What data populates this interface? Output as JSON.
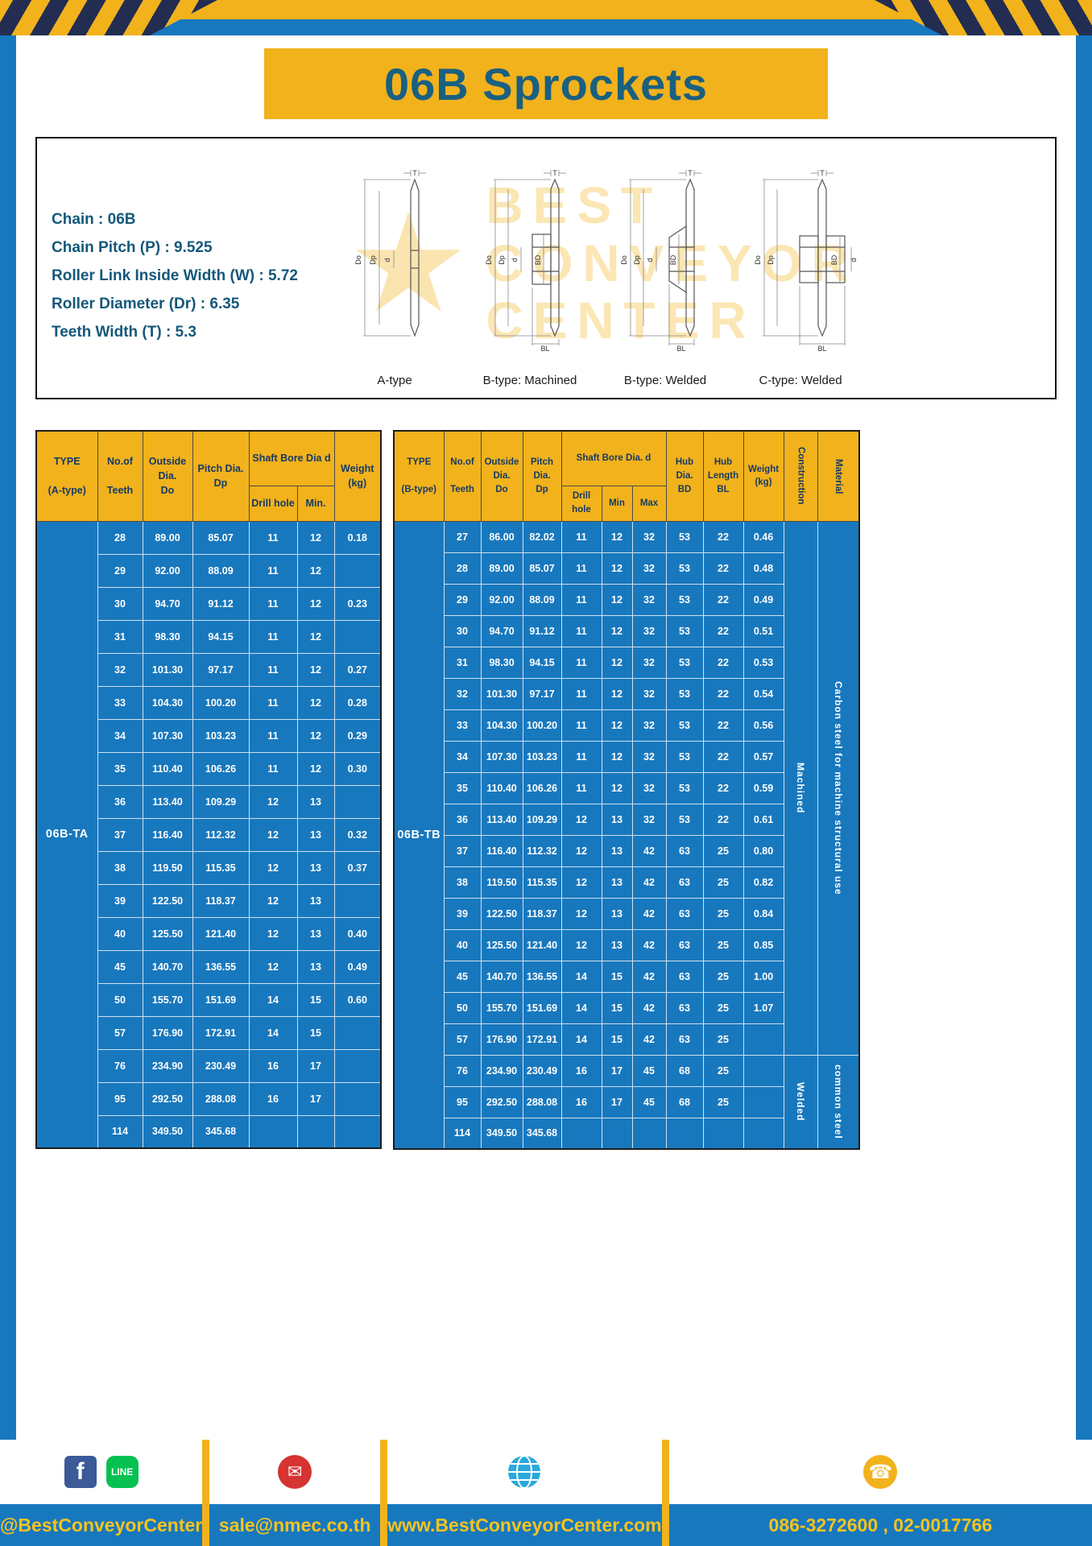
{
  "page": {
    "title": "06B Sprockets"
  },
  "specs": {
    "lines": [
      "Chain : 06B",
      "Chain Pitch (P) : 9.525",
      "Roller Link Inside Width (W) : 5.72",
      "Roller Diameter (Dr) : 6.35",
      "Teeth Width (T) : 5.3"
    ]
  },
  "watermark": [
    "BEST",
    "CONVEYOR",
    "CENTER"
  ],
  "drawings": [
    {
      "label": "A-type",
      "dims": [
        "T",
        "Do",
        "Dp",
        "d"
      ]
    },
    {
      "label": "B-type: Machined",
      "dims": [
        "T",
        "Do",
        "Dp",
        "d",
        "BD",
        "BL"
      ]
    },
    {
      "label": "B-type: Welded",
      "dims": [
        "T",
        "Do",
        "Dp",
        "d",
        "BD",
        "BL"
      ]
    },
    {
      "label": "C-type: Welded",
      "dims": [
        "T",
        "Do",
        "Dp",
        "d",
        "BD",
        "BL"
      ]
    }
  ],
  "table_a": {
    "header": {
      "type": "TYPE\n\n(A-type)",
      "teeth": "No.of\n\nTeeth",
      "outside": "Outside\nDia.\nDo",
      "pitch": "Pitch Dia.\nDp",
      "shaft": "Shaft Bore Dia d",
      "drill": "Drill hole",
      "min": "Min.",
      "weight": "Weight\n(kg)"
    },
    "type_value": "06B-TA",
    "rows": [
      [
        "28",
        "89.00",
        "85.07",
        "11",
        "12",
        "0.18"
      ],
      [
        "29",
        "92.00",
        "88.09",
        "11",
        "12",
        ""
      ],
      [
        "30",
        "94.70",
        "91.12",
        "11",
        "12",
        "0.23"
      ],
      [
        "31",
        "98.30",
        "94.15",
        "11",
        "12",
        ""
      ],
      [
        "32",
        "101.30",
        "97.17",
        "11",
        "12",
        "0.27"
      ],
      [
        "33",
        "104.30",
        "100.20",
        "11",
        "12",
        "0.28"
      ],
      [
        "34",
        "107.30",
        "103.23",
        "11",
        "12",
        "0.29"
      ],
      [
        "35",
        "110.40",
        "106.26",
        "11",
        "12",
        "0.30"
      ],
      [
        "36",
        "113.40",
        "109.29",
        "12",
        "13",
        ""
      ],
      [
        "37",
        "116.40",
        "112.32",
        "12",
        "13",
        "0.32"
      ],
      [
        "38",
        "119.50",
        "115.35",
        "12",
        "13",
        "0.37"
      ],
      [
        "39",
        "122.50",
        "118.37",
        "12",
        "13",
        ""
      ],
      [
        "40",
        "125.50",
        "121.40",
        "12",
        "13",
        "0.40"
      ],
      [
        "45",
        "140.70",
        "136.55",
        "12",
        "13",
        "0.49"
      ],
      [
        "50",
        "155.70",
        "151.69",
        "14",
        "15",
        "0.60"
      ],
      [
        "57",
        "176.90",
        "172.91",
        "14",
        "15",
        ""
      ],
      [
        "76",
        "234.90",
        "230.49",
        "16",
        "17",
        ""
      ],
      [
        "95",
        "292.50",
        "288.08",
        "16",
        "17",
        ""
      ],
      [
        "114",
        "349.50",
        "345.68",
        "",
        "",
        ""
      ]
    ]
  },
  "table_b": {
    "header": {
      "type": "TYPE\n\n(B-type)",
      "teeth": "No.of\n\nTeeth",
      "outside": "Outside\nDia.\nDo",
      "pitch": "Pitch\nDia.\nDp",
      "shaft": "Shaft Bore Dia. d",
      "drill": "Drill hole",
      "min": "Min",
      "max": "Max",
      "hub_dia": "Hub\nDia.\nBD",
      "hub_len": "Hub\nLength\nBL",
      "weight": "Weight\n(kg)",
      "construction": "Construction",
      "material": "Material"
    },
    "type_value": "06B-TB",
    "rows": [
      [
        "27",
        "86.00",
        "82.02",
        "11",
        "12",
        "32",
        "53",
        "22",
        "0.46"
      ],
      [
        "28",
        "89.00",
        "85.07",
        "11",
        "12",
        "32",
        "53",
        "22",
        "0.48"
      ],
      [
        "29",
        "92.00",
        "88.09",
        "11",
        "12",
        "32",
        "53",
        "22",
        "0.49"
      ],
      [
        "30",
        "94.70",
        "91.12",
        "11",
        "12",
        "32",
        "53",
        "22",
        "0.51"
      ],
      [
        "31",
        "98.30",
        "94.15",
        "11",
        "12",
        "32",
        "53",
        "22",
        "0.53"
      ],
      [
        "32",
        "101.30",
        "97.17",
        "11",
        "12",
        "32",
        "53",
        "22",
        "0.54"
      ],
      [
        "33",
        "104.30",
        "100.20",
        "11",
        "12",
        "32",
        "53",
        "22",
        "0.56"
      ],
      [
        "34",
        "107.30",
        "103.23",
        "11",
        "12",
        "32",
        "53",
        "22",
        "0.57"
      ],
      [
        "35",
        "110.40",
        "106.26",
        "11",
        "12",
        "32",
        "53",
        "22",
        "0.59"
      ],
      [
        "36",
        "113.40",
        "109.29",
        "12",
        "13",
        "32",
        "53",
        "22",
        "0.61"
      ],
      [
        "37",
        "116.40",
        "112.32",
        "12",
        "13",
        "42",
        "63",
        "25",
        "0.80"
      ],
      [
        "38",
        "119.50",
        "115.35",
        "12",
        "13",
        "42",
        "63",
        "25",
        "0.82"
      ],
      [
        "39",
        "122.50",
        "118.37",
        "12",
        "13",
        "42",
        "63",
        "25",
        "0.84"
      ],
      [
        "40",
        "125.50",
        "121.40",
        "12",
        "13",
        "42",
        "63",
        "25",
        "0.85"
      ],
      [
        "45",
        "140.70",
        "136.55",
        "14",
        "15",
        "42",
        "63",
        "25",
        "1.00"
      ],
      [
        "50",
        "155.70",
        "151.69",
        "14",
        "15",
        "42",
        "63",
        "25",
        "1.07"
      ],
      [
        "57",
        "176.90",
        "172.91",
        "14",
        "15",
        "42",
        "63",
        "25",
        ""
      ],
      [
        "76",
        "234.90",
        "230.49",
        "16",
        "17",
        "45",
        "68",
        "25",
        ""
      ],
      [
        "95",
        "292.50",
        "288.08",
        "16",
        "17",
        "45",
        "68",
        "25",
        ""
      ],
      [
        "114",
        "349.50",
        "345.68",
        "",
        "",
        "",
        "",
        "",
        ""
      ]
    ],
    "groups": [
      {
        "start": 0,
        "rows": 17,
        "construction": "Machined",
        "material": "Carbon steel for machine structural use"
      },
      {
        "start": 17,
        "rows": 3,
        "construction": "Welded",
        "material": "common steel"
      }
    ]
  },
  "footer": {
    "facebook_letter": "f",
    "line_text": "LINE",
    "mail_glyph": "✉",
    "phone_glyph": "☎",
    "handle": "@BestConveyorCenter",
    "email": "sale@nmec.co.th",
    "website": "www.BestConveyorCenter.com",
    "phone": "086-3272600 , 02-0017766"
  }
}
